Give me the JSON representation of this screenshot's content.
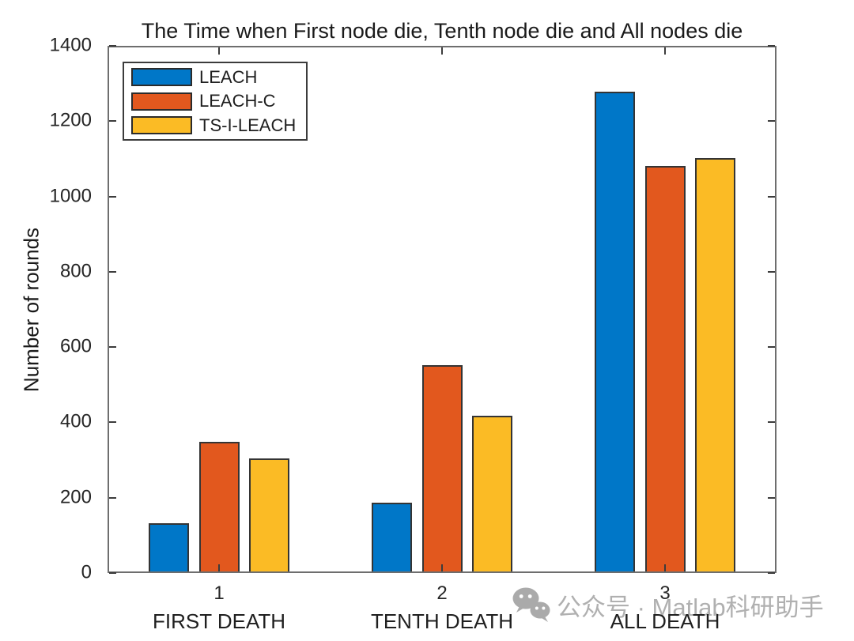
{
  "chart_data": {
    "type": "bar",
    "title": "The Time when First node die, Tenth node die and All nodes die",
    "xlabel": "",
    "ylabel": "Number of rounds",
    "ylim": [
      0,
      1400
    ],
    "yticks": [
      0,
      200,
      400,
      600,
      800,
      1000,
      1200,
      1400
    ],
    "categories": [
      "1",
      "2",
      "3"
    ],
    "category_sublabels": [
      "FIRST DEATH",
      "TENTH DEATH",
      "ALL DEATH"
    ],
    "grid": false,
    "legend_position": "top-left",
    "series": [
      {
        "name": "LEACH",
        "color": "#0077C8",
        "values": [
          132,
          186,
          1278
        ]
      },
      {
        "name": "LEACH-C",
        "color": "#E2581E",
        "values": [
          348,
          552,
          1080
        ]
      },
      {
        "name": "TS-I-LEACH",
        "color": "#FBBB25",
        "values": [
          304,
          418,
          1101
        ]
      }
    ]
  },
  "watermark": {
    "icon": "wechat-icon",
    "text": "公众号 · Matlab科研助手",
    "color": "#ACACAC"
  }
}
